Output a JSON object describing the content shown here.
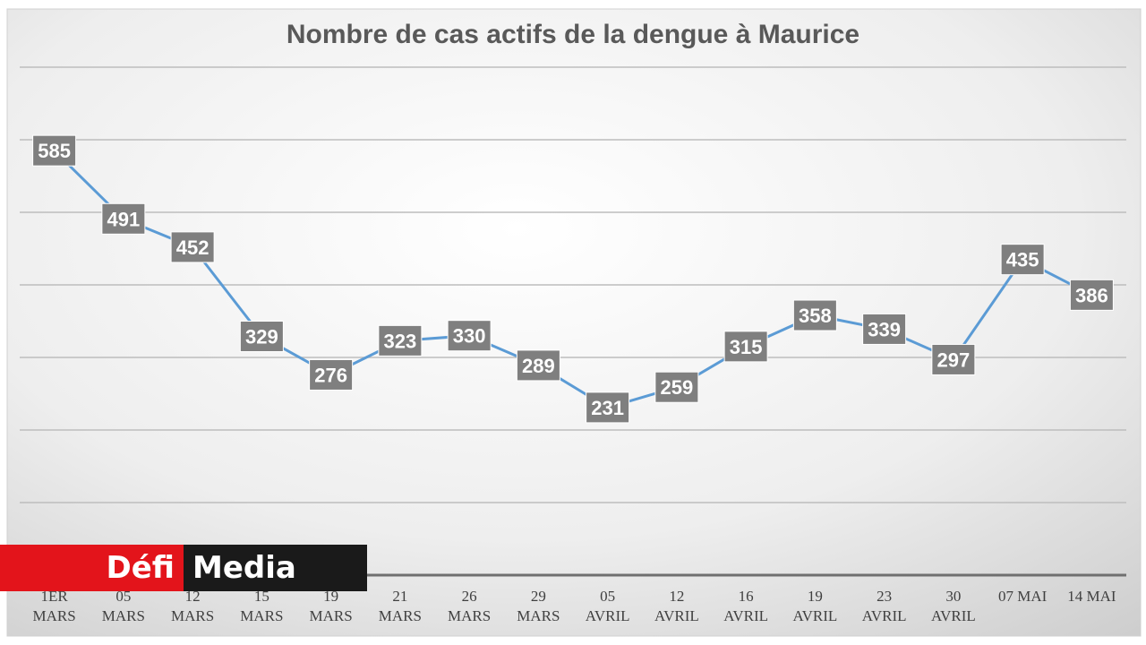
{
  "chart_data": {
    "type": "line",
    "title": "Nombre de cas actifs de la dengue à Maurice",
    "categories": [
      [
        "1ER",
        "MARS"
      ],
      [
        "05",
        "MARS"
      ],
      [
        "12",
        "MARS"
      ],
      [
        "15",
        "MARS"
      ],
      [
        "19",
        "MARS"
      ],
      [
        "21",
        "MARS"
      ],
      [
        "26",
        "MARS"
      ],
      [
        "29",
        "MARS"
      ],
      [
        "05",
        "AVRIL"
      ],
      [
        "12",
        "AVRIL"
      ],
      [
        "16",
        "AVRIL"
      ],
      [
        "19",
        "AVRIL"
      ],
      [
        "23",
        "AVRIL"
      ],
      [
        "30",
        "AVRIL"
      ],
      [
        "07 MAI"
      ],
      [
        "14 MAI"
      ]
    ],
    "values": [
      585,
      491,
      452,
      329,
      276,
      323,
      330,
      289,
      231,
      259,
      315,
      358,
      339,
      297,
      435,
      386
    ],
    "ylim": [
      0,
      700
    ],
    "grid": true,
    "line_color": "#5b9bd5",
    "label_bg": "#7f7f7f"
  },
  "logo": {
    "part1": "Défi",
    "part2": "Media"
  }
}
